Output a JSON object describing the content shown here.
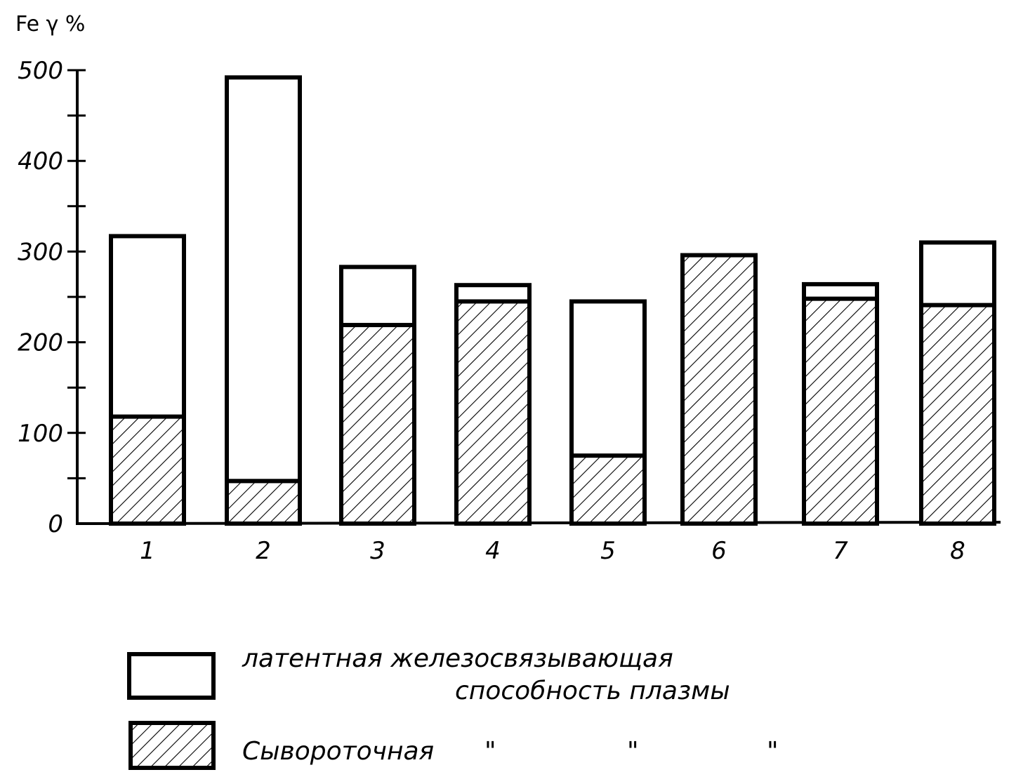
{
  "chart_data": {
    "type": "bar",
    "stacked": true,
    "ylabel": "Fe γ %",
    "ylim": [
      0,
      500
    ],
    "yticks": [
      "0",
      "100",
      "200",
      "300",
      "400",
      "500"
    ],
    "categories": [
      "1",
      "2",
      "3",
      "4",
      "5",
      "6",
      "7",
      "8"
    ],
    "series": [
      {
        "name": "Сывороточная",
        "pattern": "hatched",
        "values": [
          118,
          47,
          219,
          245,
          75,
          296,
          248,
          241
        ]
      },
      {
        "name": "латентная железосвязывающая способность плазмы",
        "pattern": "plain",
        "values": [
          199,
          445,
          64,
          18,
          170,
          0,
          16,
          69
        ]
      }
    ],
    "legend": {
      "placement": "bottom",
      "latent_line1": "латентная железосвязывающая",
      "latent_line2": "способность плазмы",
      "serum_label": "Сывороточная",
      "ditto_marks": [
        "\"",
        "\"",
        "\""
      ]
    },
    "colors": {
      "ink": "#000000",
      "fill": "#ffffff"
    }
  }
}
